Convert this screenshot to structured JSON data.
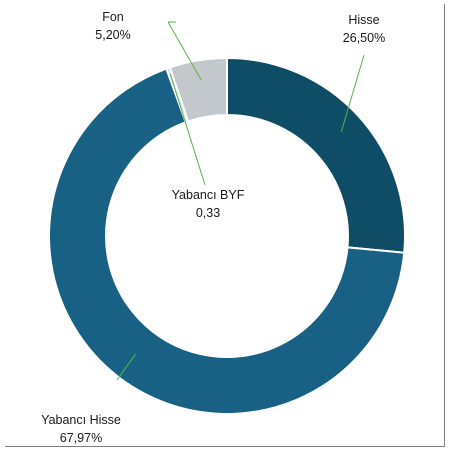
{
  "chart_data": {
    "type": "donut",
    "title": "",
    "slices": [
      {
        "name": "Hisse",
        "value": 26.5,
        "label_value": "26,50%",
        "color": "#0f4c66"
      },
      {
        "name": "Yabancı Hisse",
        "value": 67.97,
        "label_value": "67,97%",
        "color": "#186184"
      },
      {
        "name": "Yabancı BYF",
        "value": 0.33,
        "label_value": "0,33",
        "color": "#d3d5d6"
      },
      {
        "name": "Fon",
        "value": 5.2,
        "label_value": "5,20%",
        "color": "#c3c8cc"
      }
    ],
    "start": "top, clockwise",
    "leader_line_color": "#59b34a"
  }
}
